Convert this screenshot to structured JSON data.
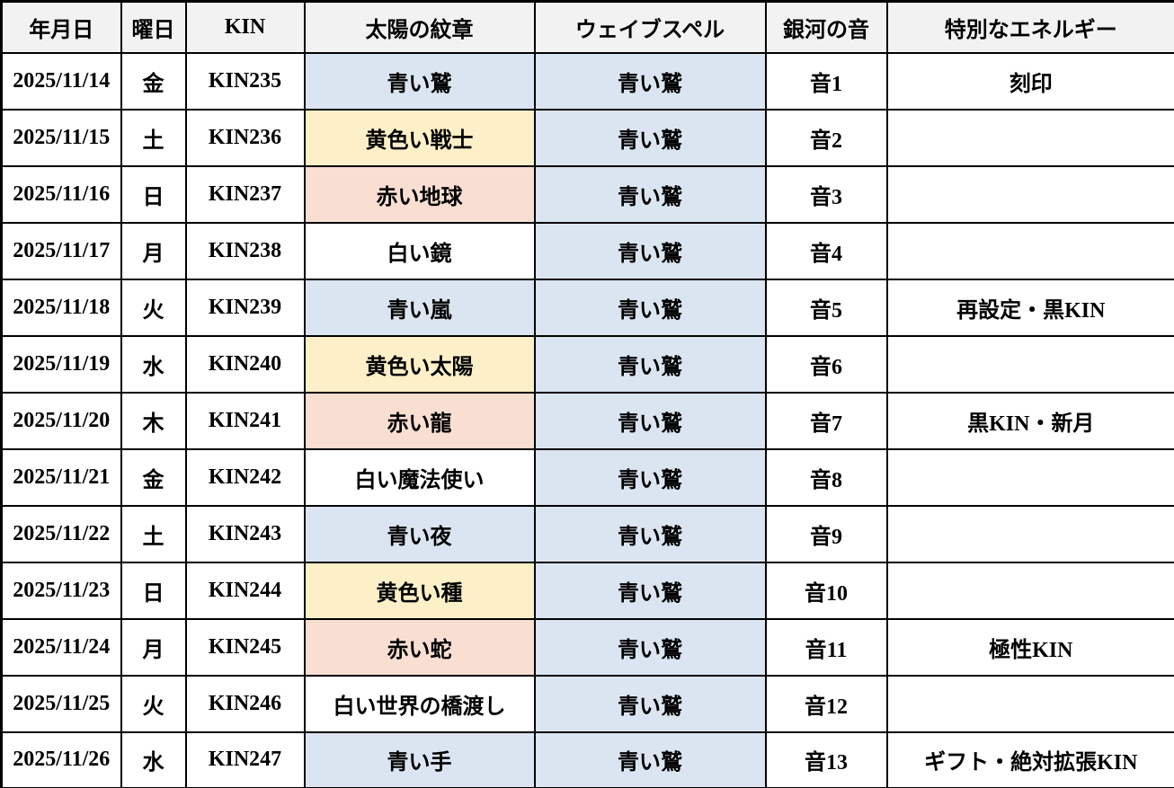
{
  "table": {
    "title": "KIN calendar table",
    "headers": [
      {
        "key": "date",
        "label": "年月日"
      },
      {
        "key": "weekday",
        "label": "曜日"
      },
      {
        "key": "kin",
        "label": "KIN"
      },
      {
        "key": "seal",
        "label": "太陽の紋章"
      },
      {
        "key": "wavespell",
        "label": "ウェイブスペル"
      },
      {
        "key": "tone",
        "label": "銀河の音"
      },
      {
        "key": "energy",
        "label": "特別なエネルギー"
      }
    ],
    "rows": [
      {
        "date": "2025/11/14",
        "weekday": "金",
        "kin": "KIN235",
        "seal": "青い鷲",
        "seal_color": "blue",
        "wavespell": "青い鷲",
        "tone": "音1",
        "energy": "刻印"
      },
      {
        "date": "2025/11/15",
        "weekday": "土",
        "kin": "KIN236",
        "seal": "黄色い戦士",
        "seal_color": "yellow",
        "wavespell": "青い鷲",
        "tone": "音2",
        "energy": ""
      },
      {
        "date": "2025/11/16",
        "weekday": "日",
        "kin": "KIN237",
        "seal": "赤い地球",
        "seal_color": "red",
        "wavespell": "青い鷲",
        "tone": "音3",
        "energy": ""
      },
      {
        "date": "2025/11/17",
        "weekday": "月",
        "kin": "KIN238",
        "seal": "白い鏡",
        "seal_color": "white",
        "wavespell": "青い鷲",
        "tone": "音4",
        "energy": ""
      },
      {
        "date": "2025/11/18",
        "weekday": "火",
        "kin": "KIN239",
        "seal": "青い嵐",
        "seal_color": "blue",
        "wavespell": "青い鷲",
        "tone": "音5",
        "energy": "再設定・黒KIN"
      },
      {
        "date": "2025/11/19",
        "weekday": "水",
        "kin": "KIN240",
        "seal": "黄色い太陽",
        "seal_color": "yellow",
        "wavespell": "青い鷲",
        "tone": "音6",
        "energy": ""
      },
      {
        "date": "2025/11/20",
        "weekday": "木",
        "kin": "KIN241",
        "seal": "赤い龍",
        "seal_color": "red",
        "wavespell": "青い鷲",
        "tone": "音7",
        "energy": "黒KIN・新月"
      },
      {
        "date": "2025/11/21",
        "weekday": "金",
        "kin": "KIN242",
        "seal": "白い魔法使い",
        "seal_color": "white",
        "wavespell": "青い鷲",
        "tone": "音8",
        "energy": ""
      },
      {
        "date": "2025/11/22",
        "weekday": "土",
        "kin": "KIN243",
        "seal": "青い夜",
        "seal_color": "blue",
        "wavespell": "青い鷲",
        "tone": "音9",
        "energy": ""
      },
      {
        "date": "2025/11/23",
        "weekday": "日",
        "kin": "KIN244",
        "seal": "黄色い種",
        "seal_color": "yellow",
        "wavespell": "青い鷲",
        "tone": "音10",
        "energy": ""
      },
      {
        "date": "2025/11/24",
        "weekday": "月",
        "kin": "KIN245",
        "seal": "赤い蛇",
        "seal_color": "red",
        "wavespell": "青い鷲",
        "tone": "音11",
        "energy": "極性KIN"
      },
      {
        "date": "2025/11/25",
        "weekday": "火",
        "kin": "KIN246",
        "seal": "白い世界の橋渡し",
        "seal_color": "white",
        "wavespell": "青い鷲",
        "tone": "音12",
        "energy": ""
      },
      {
        "date": "2025/11/26",
        "weekday": "水",
        "kin": "KIN247",
        "seal": "青い手",
        "seal_color": "blue",
        "wavespell": "青い鷲",
        "tone": "音13",
        "energy": "ギフト・絶対拡張KIN"
      }
    ],
    "colors": {
      "blue": "#dbe5f1",
      "yellow": "#fdf0c8",
      "red": "#f9ded2",
      "white": "#ffffff",
      "header_bg": "#f2f2f2",
      "border": "#000000"
    }
  }
}
